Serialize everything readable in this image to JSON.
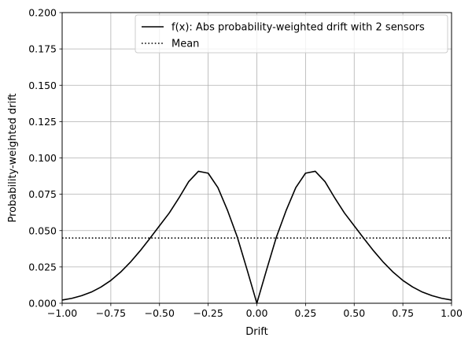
{
  "chart_data": {
    "type": "line",
    "title": "",
    "xlabel": "Drift",
    "ylabel": "Probability-weighted drift",
    "xlim": [
      -1.0,
      1.0
    ],
    "ylim": [
      0.0,
      0.2
    ],
    "xticks": [
      -1.0,
      -0.75,
      -0.5,
      -0.25,
      0.0,
      0.25,
      0.5,
      0.75,
      1.0
    ],
    "xtick_labels": [
      "−1.00",
      "−0.75",
      "−0.50",
      "−0.25",
      "0.00",
      "0.25",
      "0.50",
      "0.75",
      "1.00"
    ],
    "yticks": [
      0.0,
      0.025,
      0.05,
      0.075,
      0.1,
      0.125,
      0.15,
      0.175,
      0.2
    ],
    "ytick_labels": [
      "0.000",
      "0.025",
      "0.050",
      "0.075",
      "0.100",
      "0.125",
      "0.150",
      "0.175",
      "0.200"
    ],
    "grid": true,
    "legend_position": "top-right",
    "series": [
      {
        "name": "f(x): Abs probability-weighted drift with 2 sensors",
        "style": "solid",
        "color": "#000000",
        "x": [
          -1.0,
          -0.95,
          -0.9,
          -0.85,
          -0.8,
          -0.75,
          -0.7,
          -0.65,
          -0.6,
          -0.55,
          -0.5,
          -0.45,
          -0.4,
          -0.35,
          -0.3,
          -0.25,
          -0.2,
          -0.15,
          -0.1,
          -0.05,
          0.0,
          0.05,
          0.1,
          0.15,
          0.2,
          0.25,
          0.3,
          0.35,
          0.4,
          0.45,
          0.5,
          0.55,
          0.6,
          0.65,
          0.7,
          0.75,
          0.8,
          0.85,
          0.9,
          0.95,
          1.0
        ],
        "y": [
          0.0022,
          0.0034,
          0.0052,
          0.0077,
          0.0112,
          0.0157,
          0.0214,
          0.0282,
          0.036,
          0.0445,
          0.0533,
          0.0621,
          0.0725,
          0.0837,
          0.0908,
          0.0895,
          0.0796,
          0.0637,
          0.0454,
          0.023,
          0.0,
          0.023,
          0.0454,
          0.0637,
          0.0796,
          0.0895,
          0.0908,
          0.0837,
          0.0725,
          0.0621,
          0.0533,
          0.0445,
          0.036,
          0.0282,
          0.0214,
          0.0157,
          0.0112,
          0.0077,
          0.0052,
          0.0034,
          0.0022
        ]
      },
      {
        "name": "Mean",
        "style": "dotted",
        "color": "#000000",
        "x": [
          -1.0,
          1.0
        ],
        "y": [
          0.0449,
          0.0449
        ]
      }
    ]
  }
}
